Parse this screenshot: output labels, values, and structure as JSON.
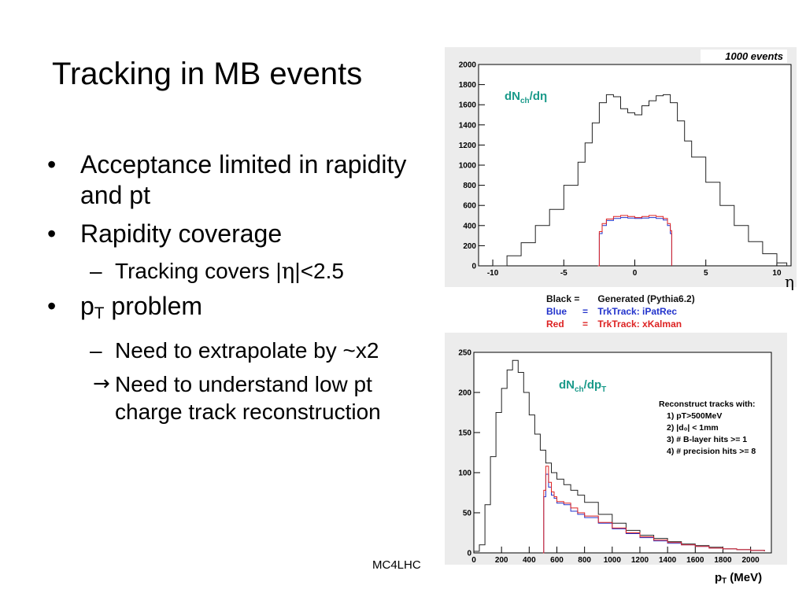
{
  "slide": {
    "title": "Tracking in MB events",
    "footer": "MC4LHC",
    "bullets": {
      "b1": "Acceptance limited in rapidity and pt",
      "b2": "Rapidity coverage",
      "b2_sub_prefix": "Tracking covers |",
      "b2_sub_eta": "η",
      "b2_sub_suffix": "|<2.5",
      "b3_p": "p",
      "b3_sub": "T",
      "b3_rest": " problem",
      "b3_sub1": "Need to extrapolate by ~x2",
      "b3_sub2_arrow": "→",
      "b3_sub2": "Need to understand low pt charge track reconstruction"
    },
    "bullet_glyph": "•",
    "dash_glyph": "–"
  },
  "legend": {
    "black_key": "Black =",
    "black_val": "Generated (Pythia6.2)",
    "blue_key": "Blue",
    "blue_eq": "=",
    "blue_val": "TrkTrack: iPatRec",
    "red_key": "Red",
    "red_eq": "=",
    "red_val": "TrkTrack: xKalman"
  },
  "colors": {
    "black": "#222222",
    "blue": "#2233cc",
    "red": "#dd2222",
    "teal": "#1a9a8a",
    "panel": "#ececec"
  },
  "chart_data": [
    {
      "type": "line",
      "title": "1000 events",
      "label_main": "dN",
      "label_sub": "ch",
      "label_end": "/dη",
      "xlabel": "η",
      "xlim": [
        -11,
        11
      ],
      "ylim": [
        0,
        2000
      ],
      "xticks": [
        -10,
        -5,
        0,
        5,
        10
      ],
      "yticks": [
        0,
        200,
        400,
        600,
        800,
        1000,
        1200,
        1400,
        1600,
        1800,
        2000
      ],
      "series": [
        {
          "name": "Generated (Pythia6.2)",
          "color": "#222222",
          "x": [
            -10,
            -9,
            -8,
            -7,
            -6,
            -5,
            -4,
            -3.5,
            -3,
            -2.5,
            -2,
            -1.5,
            -1,
            -0.5,
            0,
            0.5,
            1,
            1.5,
            2,
            2.5,
            3,
            3.5,
            4,
            5,
            6,
            7,
            8,
            9,
            10,
            10.7
          ],
          "y": [
            0,
            100,
            230,
            400,
            560,
            800,
            1030,
            1220,
            1420,
            1620,
            1700,
            1680,
            1560,
            1520,
            1500,
            1590,
            1640,
            1690,
            1700,
            1620,
            1440,
            1240,
            1080,
            830,
            600,
            400,
            240,
            120,
            30,
            0
          ]
        },
        {
          "name": "TrkTrack: iPatRec",
          "color": "#2233cc",
          "x": [
            -2.6,
            -2.5,
            -2.3,
            -2,
            -1.5,
            -1,
            -0.5,
            0,
            0.5,
            1,
            1.5,
            2,
            2.3,
            2.5,
            2.6
          ],
          "y": [
            0,
            320,
            400,
            450,
            470,
            480,
            475,
            470,
            475,
            480,
            470,
            455,
            400,
            320,
            0
          ]
        },
        {
          "name": "TrkTrack: xKalman",
          "color": "#dd2222",
          "x": [
            -2.6,
            -2.5,
            -2.3,
            -2,
            -1.5,
            -1,
            -0.5,
            0,
            0.5,
            1,
            1.5,
            2,
            2.3,
            2.5,
            2.6
          ],
          "y": [
            0,
            340,
            420,
            465,
            490,
            500,
            490,
            480,
            490,
            500,
            490,
            470,
            420,
            350,
            0
          ]
        }
      ]
    },
    {
      "type": "line",
      "label_main": "dN",
      "label_sub": "ch",
      "label_end": "/dp",
      "label_end_sub": "T",
      "xlabel_p": "p",
      "xlabel_sub": "T",
      "xlabel_rest": " (MeV)",
      "xlim": [
        0,
        2150
      ],
      "ylim": [
        0,
        250
      ],
      "xticks": [
        0,
        200,
        400,
        600,
        800,
        1000,
        1200,
        1400,
        1600,
        1800,
        2000
      ],
      "yticks": [
        0,
        50,
        100,
        150,
        200,
        250
      ],
      "annotation": [
        "Reconstruct tracks with:",
        "1) pT>500MeV",
        "2) |d₀| < 1mm",
        "3) # B-layer hits >= 1",
        "4) # precision hits >= 8"
      ],
      "series": [
        {
          "name": "Generated (Pythia6.2)",
          "color": "#222222",
          "x": [
            0,
            40,
            80,
            120,
            160,
            200,
            240,
            280,
            320,
            360,
            400,
            440,
            480,
            520,
            560,
            600,
            650,
            700,
            750,
            800,
            900,
            1000,
            1100,
            1200,
            1300,
            1400,
            1500,
            1600,
            1700,
            1800,
            1900,
            2000,
            2100
          ],
          "y": [
            2,
            10,
            60,
            120,
            175,
            205,
            228,
            240,
            225,
            200,
            172,
            148,
            128,
            112,
            100,
            92,
            85,
            78,
            72,
            63,
            48,
            37,
            28,
            22,
            18,
            14,
            11,
            9,
            7,
            5,
            4,
            3,
            2
          ]
        },
        {
          "name": "TrkTrack: iPatRec",
          "color": "#2233cc",
          "x": [
            500,
            505,
            520,
            540,
            560,
            580,
            600,
            650,
            700,
            750,
            800,
            900,
            1000,
            1100,
            1200,
            1300,
            1400,
            1500,
            1600,
            1700,
            1800,
            1900,
            2000,
            2100
          ],
          "y": [
            0,
            70,
            98,
            82,
            72,
            68,
            62,
            60,
            52,
            48,
            44,
            37,
            30,
            24,
            19,
            15,
            12,
            10,
            8,
            6,
            5,
            4,
            3,
            2
          ]
        },
        {
          "name": "TrkTrack: xKalman",
          "color": "#dd2222",
          "x": [
            500,
            505,
            520,
            540,
            560,
            580,
            600,
            650,
            700,
            750,
            800,
            900,
            1000,
            1100,
            1200,
            1300,
            1400,
            1500,
            1600,
            1700,
            1800,
            1900,
            2000,
            2100
          ],
          "y": [
            0,
            78,
            108,
            88,
            76,
            70,
            64,
            62,
            56,
            50,
            46,
            38,
            31,
            25,
            20,
            16,
            13,
            10,
            8,
            6,
            5,
            4,
            3,
            2
          ]
        }
      ]
    }
  ]
}
